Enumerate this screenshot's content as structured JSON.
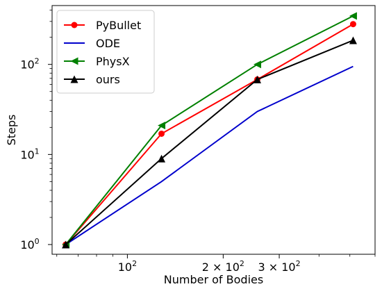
{
  "chart_data": {
    "type": "line",
    "xlabel": "Number of Bodies",
    "ylabel": "Steps",
    "xscale": "log",
    "yscale": "log",
    "xlim": [
      58,
      600
    ],
    "ylim": [
      0.78,
      450
    ],
    "grid": false,
    "legend_position": "top-left",
    "x_ticks": [
      {
        "value": 100,
        "base": "10",
        "exp": "2"
      },
      {
        "value": 200,
        "base": "2 × 10",
        "exp": "2"
      },
      {
        "value": 300,
        "base": "3 × 10",
        "exp": "2"
      }
    ],
    "y_ticks": [
      {
        "value": 1,
        "base": "10",
        "exp": "0"
      },
      {
        "value": 10,
        "base": "10",
        "exp": "1"
      },
      {
        "value": 100,
        "base": "10",
        "exp": "2"
      }
    ],
    "series": [
      {
        "name": "PyBullet",
        "color": "#ff0000",
        "marker": "circle",
        "x": [
          64,
          128,
          256,
          512
        ],
        "y": [
          1,
          17,
          68,
          280
        ]
      },
      {
        "name": "ODE",
        "color": "#0000cc",
        "marker": "none",
        "x": [
          64,
          128,
          256,
          512
        ],
        "y": [
          1,
          5,
          30,
          95
        ]
      },
      {
        "name": "PhysX",
        "color": "#008000",
        "marker": "triangle-left",
        "x": [
          64,
          128,
          256,
          512
        ],
        "y": [
          1,
          21,
          100,
          345
        ]
      },
      {
        "name": "ours",
        "color": "#000000",
        "marker": "triangle-up",
        "x": [
          64,
          128,
          256,
          512
        ],
        "y": [
          1,
          9,
          68,
          185
        ]
      }
    ]
  }
}
